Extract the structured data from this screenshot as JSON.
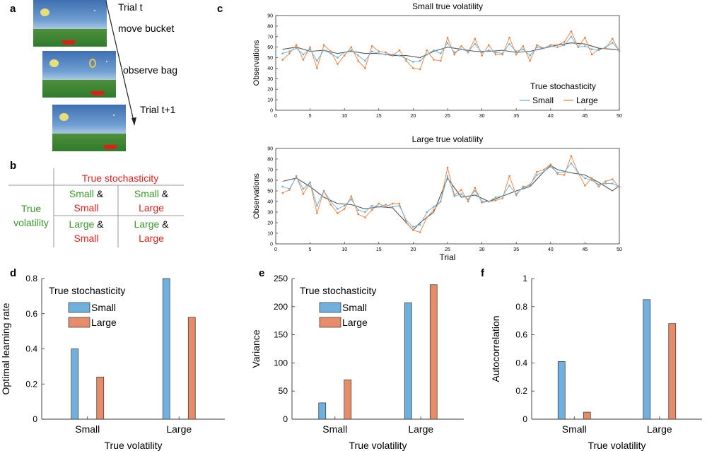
{
  "panels": {
    "a": "a",
    "b": "b",
    "c": "c",
    "d": "d",
    "e": "e",
    "f": "f"
  },
  "panel_a": {
    "trial_t": "Trial t",
    "move_bucket": "move bucket",
    "observe_bag": "observe bag",
    "trial_t1": "Trial t+1"
  },
  "panel_b": {
    "header": "True stochasticity",
    "row_label_1": "True",
    "row_label_2": "volatility",
    "c11_v": "Small",
    "c11_amp": " &",
    "c11_s": "Small",
    "c12_v": "Small",
    "c12_amp": " &",
    "c12_s": "Large",
    "c21_v": "Large",
    "c21_amp": " &",
    "c21_s": "Small",
    "c22_v": "Large",
    "c22_amp": " &",
    "c22_s": "Large"
  },
  "colors": {
    "blue": "#6baed6",
    "orange": "#f07f3c",
    "dark": "#555555",
    "bar_blue": "#6fb0dc",
    "bar_orange": "#e68c6a"
  },
  "chart_data": [
    {
      "id": "c_top",
      "type": "line",
      "title": "Small true volatility",
      "xlabel": "",
      "ylabel": "Observations",
      "xlim": [
        0,
        50
      ],
      "ylim": [
        0,
        90
      ],
      "xticks": [
        0,
        5,
        10,
        15,
        20,
        25,
        30,
        35,
        40,
        45,
        50
      ],
      "yticks": [
        0,
        10,
        20,
        30,
        40,
        50,
        60,
        70,
        80,
        90
      ],
      "legend_title": "True stochasticity",
      "series": [
        {
          "name": "Small",
          "color": "#6baed6",
          "x": [
            1,
            2,
            3,
            4,
            5,
            6,
            7,
            8,
            9,
            10,
            11,
            12,
            13,
            14,
            15,
            16,
            17,
            18,
            19,
            20,
            21,
            22,
            23,
            24,
            25,
            26,
            27,
            28,
            29,
            30,
            31,
            32,
            33,
            34,
            35,
            36,
            37,
            38,
            39,
            40,
            41,
            42,
            43,
            44,
            45,
            46,
            47,
            48,
            49,
            50
          ],
          "values": [
            54,
            56,
            59,
            53,
            58,
            47,
            57,
            54,
            50,
            55,
            57,
            52,
            47,
            56,
            54,
            53,
            53,
            52,
            49,
            46,
            47,
            53,
            57,
            54,
            64,
            55,
            58,
            56,
            63,
            55,
            57,
            55,
            54,
            63,
            56,
            58,
            52,
            60,
            59,
            61,
            60,
            62,
            70,
            60,
            61,
            58,
            57,
            60,
            64,
            57
          ]
        },
        {
          "name": "Large",
          "color": "#f07f3c",
          "x": [
            1,
            2,
            3,
            4,
            5,
            6,
            7,
            8,
            9,
            10,
            11,
            12,
            13,
            14,
            15,
            16,
            17,
            18,
            19,
            20,
            21,
            22,
            23,
            24,
            25,
            26,
            27,
            28,
            29,
            30,
            31,
            32,
            33,
            34,
            35,
            36,
            37,
            38,
            39,
            40,
            41,
            42,
            43,
            44,
            45,
            46,
            47,
            48,
            49,
            50
          ],
          "values": [
            48,
            54,
            62,
            48,
            60,
            40,
            62,
            56,
            44,
            52,
            60,
            47,
            40,
            61,
            56,
            55,
            52,
            57,
            47,
            40,
            39,
            57,
            48,
            47,
            69,
            53,
            61,
            55,
            68,
            52,
            62,
            53,
            53,
            69,
            53,
            61,
            47,
            62,
            59,
            62,
            62,
            65,
            75,
            60,
            69,
            53,
            58,
            59,
            68,
            56
          ]
        },
        {
          "name": "True",
          "color": "#555555",
          "x": [
            1,
            3,
            5,
            7,
            9,
            11,
            13,
            15,
            17,
            19,
            21,
            23,
            25,
            27,
            29,
            31,
            33,
            35,
            37,
            39,
            41,
            43,
            45,
            47,
            49,
            50
          ],
          "values": [
            58,
            60,
            56,
            57,
            54,
            56,
            54,
            54,
            52,
            52,
            50,
            56,
            60,
            58,
            56,
            56,
            57,
            55,
            56,
            59,
            62,
            64,
            63,
            59,
            58,
            57
          ]
        }
      ]
    },
    {
      "id": "c_bottom",
      "type": "line",
      "title": "Large true volatility",
      "xlabel": "Trial",
      "ylabel": "Observations",
      "xlim": [
        0,
        50
      ],
      "ylim": [
        0,
        90
      ],
      "xticks": [
        0,
        5,
        10,
        15,
        20,
        25,
        30,
        35,
        40,
        45,
        50
      ],
      "yticks": [
        0,
        10,
        20,
        30,
        40,
        50,
        60,
        70,
        80,
        90
      ],
      "series": [
        {
          "name": "Small",
          "color": "#6baed6",
          "x": [
            1,
            2,
            3,
            4,
            5,
            6,
            7,
            8,
            9,
            10,
            11,
            12,
            13,
            14,
            15,
            16,
            17,
            18,
            19,
            20,
            21,
            22,
            23,
            24,
            25,
            26,
            27,
            28,
            29,
            30,
            31,
            32,
            33,
            34,
            35,
            36,
            37,
            38,
            39,
            40,
            41,
            42,
            43,
            44,
            45,
            46,
            47,
            48,
            49,
            50
          ],
          "values": [
            54,
            52,
            63,
            52,
            58,
            36,
            50,
            40,
            33,
            36,
            42,
            32,
            30,
            36,
            35,
            37,
            35,
            36,
            22,
            16,
            18,
            30,
            35,
            40,
            64,
            45,
            47,
            42,
            50,
            40,
            40,
            44,
            45,
            55,
            47,
            53,
            56,
            65,
            68,
            73,
            67,
            68,
            76,
            67,
            62,
            60,
            56,
            57,
            57,
            54
          ]
        },
        {
          "name": "Large",
          "color": "#f07f3c",
          "x": [
            1,
            2,
            3,
            4,
            5,
            6,
            7,
            8,
            9,
            10,
            11,
            12,
            13,
            14,
            15,
            16,
            17,
            18,
            19,
            20,
            21,
            22,
            23,
            24,
            25,
            26,
            27,
            28,
            29,
            30,
            31,
            32,
            33,
            34,
            35,
            36,
            37,
            38,
            39,
            40,
            41,
            42,
            43,
            44,
            45,
            46,
            47,
            48,
            49,
            50
          ],
          "values": [
            48,
            51,
            64,
            47,
            58,
            29,
            50,
            37,
            29,
            33,
            45,
            28,
            25,
            32,
            38,
            35,
            38,
            38,
            20,
            13,
            11,
            25,
            32,
            40,
            72,
            46,
            51,
            40,
            53,
            39,
            40,
            41,
            43,
            64,
            46,
            54,
            55,
            68,
            70,
            75,
            66,
            65,
            83,
            67,
            55,
            62,
            54,
            59,
            61,
            53
          ]
        },
        {
          "name": "True",
          "color": "#555555",
          "x": [
            1,
            3,
            5,
            7,
            9,
            11,
            13,
            15,
            17,
            19,
            20,
            21,
            23,
            25,
            27,
            29,
            31,
            33,
            35,
            37,
            39,
            40,
            41,
            43,
            45,
            47,
            49,
            50
          ],
          "values": [
            59,
            62,
            54,
            44,
            38,
            37,
            33,
            35,
            34,
            20,
            13,
            20,
            30,
            62,
            44,
            46,
            40,
            45,
            50,
            54,
            68,
            74,
            70,
            67,
            65,
            58,
            50,
            55
          ]
        }
      ]
    },
    {
      "id": "d",
      "type": "bar",
      "title": "",
      "xlabel": "True volatility",
      "ylabel": "Optimal learning rate",
      "categories": [
        "Small",
        "Large"
      ],
      "ylim": [
        0,
        0.8
      ],
      "yticks": [
        0,
        0.2,
        0.4,
        0.6,
        0.8
      ],
      "legend_title": "True stochasticity",
      "series": [
        {
          "name": "Small",
          "values": [
            0.4,
            0.8
          ]
        },
        {
          "name": "Large",
          "values": [
            0.24,
            0.58
          ]
        }
      ]
    },
    {
      "id": "e",
      "type": "bar",
      "title": "",
      "xlabel": "True volatility",
      "ylabel": "Variance",
      "categories": [
        "Small",
        "Large"
      ],
      "ylim": [
        0,
        250
      ],
      "yticks": [
        0,
        50,
        100,
        150,
        200,
        250
      ],
      "legend_title": "True stochasticity",
      "series": [
        {
          "name": "Small",
          "values": [
            29,
            207
          ]
        },
        {
          "name": "Large",
          "values": [
            70,
            239
          ]
        }
      ]
    },
    {
      "id": "f",
      "type": "bar",
      "title": "",
      "xlabel": "True volatility",
      "ylabel": "Autocorrelation",
      "categories": [
        "Small",
        "Large"
      ],
      "ylim": [
        0,
        1
      ],
      "yticks": [
        0,
        0.2,
        0.4,
        0.6,
        0.8,
        1
      ],
      "series": [
        {
          "name": "Small",
          "values": [
            0.41,
            0.85
          ]
        },
        {
          "name": "Large",
          "values": [
            0.05,
            0.68
          ]
        }
      ]
    }
  ]
}
